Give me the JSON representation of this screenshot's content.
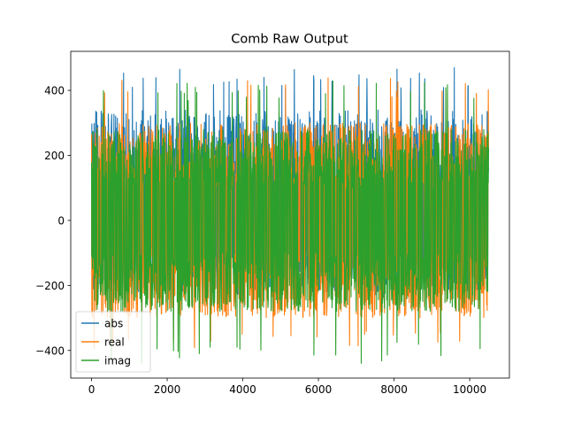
{
  "chart_data": {
    "type": "line",
    "title": "Comb Raw Output",
    "xlabel": "",
    "ylabel": "",
    "x_range": [
      0,
      10500
    ],
    "xlim": [
      -550,
      11050
    ],
    "ylim": [
      -485,
      520
    ],
    "x_ticks": [
      0,
      2000,
      4000,
      6000,
      8000,
      10000
    ],
    "y_ticks": [
      -400,
      -200,
      0,
      200,
      400
    ],
    "x_tick_labels": [
      "0",
      "2000",
      "4000",
      "6000",
      "8000",
      "10000"
    ],
    "y_tick_labels": [
      "−400",
      "−200",
      "0",
      "200",
      "400"
    ],
    "grid": false,
    "legend_position": "lower-left",
    "series": [
      {
        "name": "abs",
        "color": "#1f77b4",
        "max": 475,
        "min": -240,
        "typical_high": 340,
        "typical_low": -220
      },
      {
        "name": "real",
        "color": "#ff7f0e",
        "max": 440,
        "min": -395,
        "typical_high": 300,
        "typical_low": -300
      },
      {
        "name": "imag",
        "color": "#2ca02c",
        "max": 430,
        "min": -440,
        "typical_high": 280,
        "typical_low": -280
      }
    ]
  }
}
